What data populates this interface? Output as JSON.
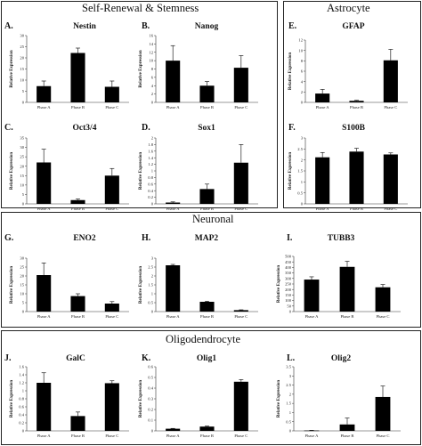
{
  "sections": {
    "self_renewal": "Self-Renewal & Stemness",
    "astrocyte": "Astrocyte",
    "neuronal": "Neuronal",
    "oligodendrocyte": "Oligodendrocyte"
  },
  "colors": {
    "bar": "#000000",
    "axis": "#333333",
    "frame": "#222222"
  },
  "chart_data": [
    {
      "id": "A",
      "letter": "A.",
      "type": "bar",
      "title": "Nestin",
      "ylabel": "Relative Expression",
      "categories": [
        "Phase A",
        "Phase B",
        "Phase C"
      ],
      "values": [
        7.3,
        22.2,
        7.0
      ],
      "errors": [
        2.3,
        2.2,
        2.6
      ],
      "yticks": [
        0,
        5,
        10,
        15,
        20,
        25,
        30
      ],
      "ylim": [
        0,
        30
      ]
    },
    {
      "id": "B",
      "letter": "B.",
      "type": "bar",
      "title": "Nanog",
      "ylabel": "Relative Expression",
      "categories": [
        "Phase A",
        "Phase B",
        "Phase C"
      ],
      "values": [
        10.0,
        4.0,
        8.3
      ],
      "errors": [
        3.6,
        1.0,
        2.9
      ],
      "yticks": [
        0,
        2,
        4,
        6,
        8,
        10,
        12,
        14,
        16
      ],
      "ylim": [
        0,
        16
      ]
    },
    {
      "id": "C",
      "letter": "C.",
      "type": "bar",
      "title": "Oct3/4",
      "ylabel": "Relative Expression",
      "categories": [
        "Phase A",
        "Phase B",
        "Phase C"
      ],
      "values": [
        22.0,
        2.0,
        15.0
      ],
      "errors": [
        7.0,
        0.6,
        3.8
      ],
      "yticks": [
        0,
        5,
        10,
        15,
        20,
        25,
        30,
        35
      ],
      "ylim": [
        0,
        35
      ]
    },
    {
      "id": "D",
      "letter": "D.",
      "type": "bar",
      "title": "Sox1",
      "ylabel": "Relative Expression",
      "categories": [
        "Phase A",
        "Phase B",
        "Phase C"
      ],
      "values": [
        0.04,
        0.45,
        1.25
      ],
      "errors": [
        0.02,
        0.15,
        0.55
      ],
      "yticks": [
        0,
        0.2,
        0.4,
        0.6,
        0.8,
        1,
        1.2,
        1.4,
        1.6,
        1.8,
        2
      ],
      "ylim": [
        0,
        2
      ]
    },
    {
      "id": "E",
      "letter": "E.",
      "type": "bar",
      "title": "GFAP",
      "ylabel": "Relative Expression",
      "categories": [
        "Phase A",
        "Phase B",
        "Phase C"
      ],
      "values": [
        1.7,
        0.3,
        8.1
      ],
      "errors": [
        0.8,
        0.1,
        2.1
      ],
      "yticks": [
        0,
        2,
        4,
        6,
        8,
        10,
        12
      ],
      "ylim": [
        0,
        12
      ]
    },
    {
      "id": "F",
      "letter": "F.",
      "type": "bar",
      "title": "S100B",
      "ylabel": "Relative Expression",
      "categories": [
        "Phase A",
        "Phase B",
        "Phase C"
      ],
      "values": [
        2.12,
        2.38,
        2.25
      ],
      "errors": [
        0.22,
        0.15,
        0.07
      ],
      "yticks": [
        0,
        0.5,
        1,
        1.5,
        2,
        2.5,
        3
      ],
      "ylim": [
        0,
        3
      ]
    },
    {
      "id": "G",
      "letter": "G.",
      "type": "bar",
      "title": "ENO2",
      "ylabel": "Relative Expression",
      "categories": [
        "Phase A",
        "Phase B",
        "Phase C"
      ],
      "values": [
        20.5,
        8.7,
        4.5
      ],
      "errors": [
        6.8,
        1.3,
        1.1
      ],
      "yticks": [
        0,
        5,
        10,
        15,
        20,
        25,
        30
      ],
      "ylim": [
        0,
        30
      ]
    },
    {
      "id": "H",
      "letter": "H.",
      "type": "bar",
      "title": "MAP2",
      "ylabel": "Relative Expression",
      "categories": [
        "Phase A",
        "Phase B",
        "Phase C"
      ],
      "values": [
        2.6,
        0.55,
        0.08
      ],
      "errors": [
        0.05,
        0.03,
        0.02
      ],
      "yticks": [
        0,
        0.5,
        1,
        1.5,
        2,
        2.5,
        3
      ],
      "ylim": [
        0,
        3
      ]
    },
    {
      "id": "I",
      "letter": "I.",
      "type": "bar",
      "title": "TUBB3",
      "ylabel": "Relative Expression",
      "categories": [
        "Phase A",
        "Phase B",
        "Phase C"
      ],
      "values": [
        290,
        405,
        220
      ],
      "errors": [
        25,
        50,
        25
      ],
      "yticks": [
        0,
        50,
        100,
        150,
        200,
        250,
        300,
        350,
        400,
        450,
        500
      ],
      "ylim": [
        0,
        500
      ]
    },
    {
      "id": "J",
      "letter": "J.",
      "type": "bar",
      "title": "GalC",
      "ylabel": "Relative Expression",
      "categories": [
        "Phase A",
        "Phase B",
        "Phase C"
      ],
      "values": [
        1.2,
        0.37,
        1.19
      ],
      "errors": [
        0.25,
        0.1,
        0.06
      ],
      "yticks": [
        0,
        0.2,
        0.4,
        0.6,
        0.8,
        1,
        1.2,
        1.4,
        1.6
      ],
      "ylim": [
        0,
        1.6
      ]
    },
    {
      "id": "K",
      "letter": "K.",
      "type": "bar",
      "title": "Olig1",
      "ylabel": "Relative Expression",
      "categories": [
        "Phase A",
        "Phase B",
        "Phase C"
      ],
      "values": [
        0.02,
        0.04,
        0.46
      ],
      "errors": [
        0.003,
        0.005,
        0.02
      ],
      "yticks": [
        0,
        0.1,
        0.2,
        0.3,
        0.4,
        0.5,
        0.6
      ],
      "ylim": [
        0,
        0.6
      ]
    },
    {
      "id": "L",
      "letter": "L.",
      "type": "bar",
      "title": "Olig2",
      "ylabel": "Relative Expression",
      "categories": [
        "Phase A",
        "Phase B",
        "Phase C"
      ],
      "values": [
        0.02,
        0.35,
        1.85
      ],
      "errors": [
        0.01,
        0.35,
        0.6
      ],
      "yticks": [
        0,
        0.5,
        1,
        1.5,
        2,
        2.5,
        3,
        3.5
      ],
      "ylim": [
        0,
        3.5
      ]
    }
  ]
}
